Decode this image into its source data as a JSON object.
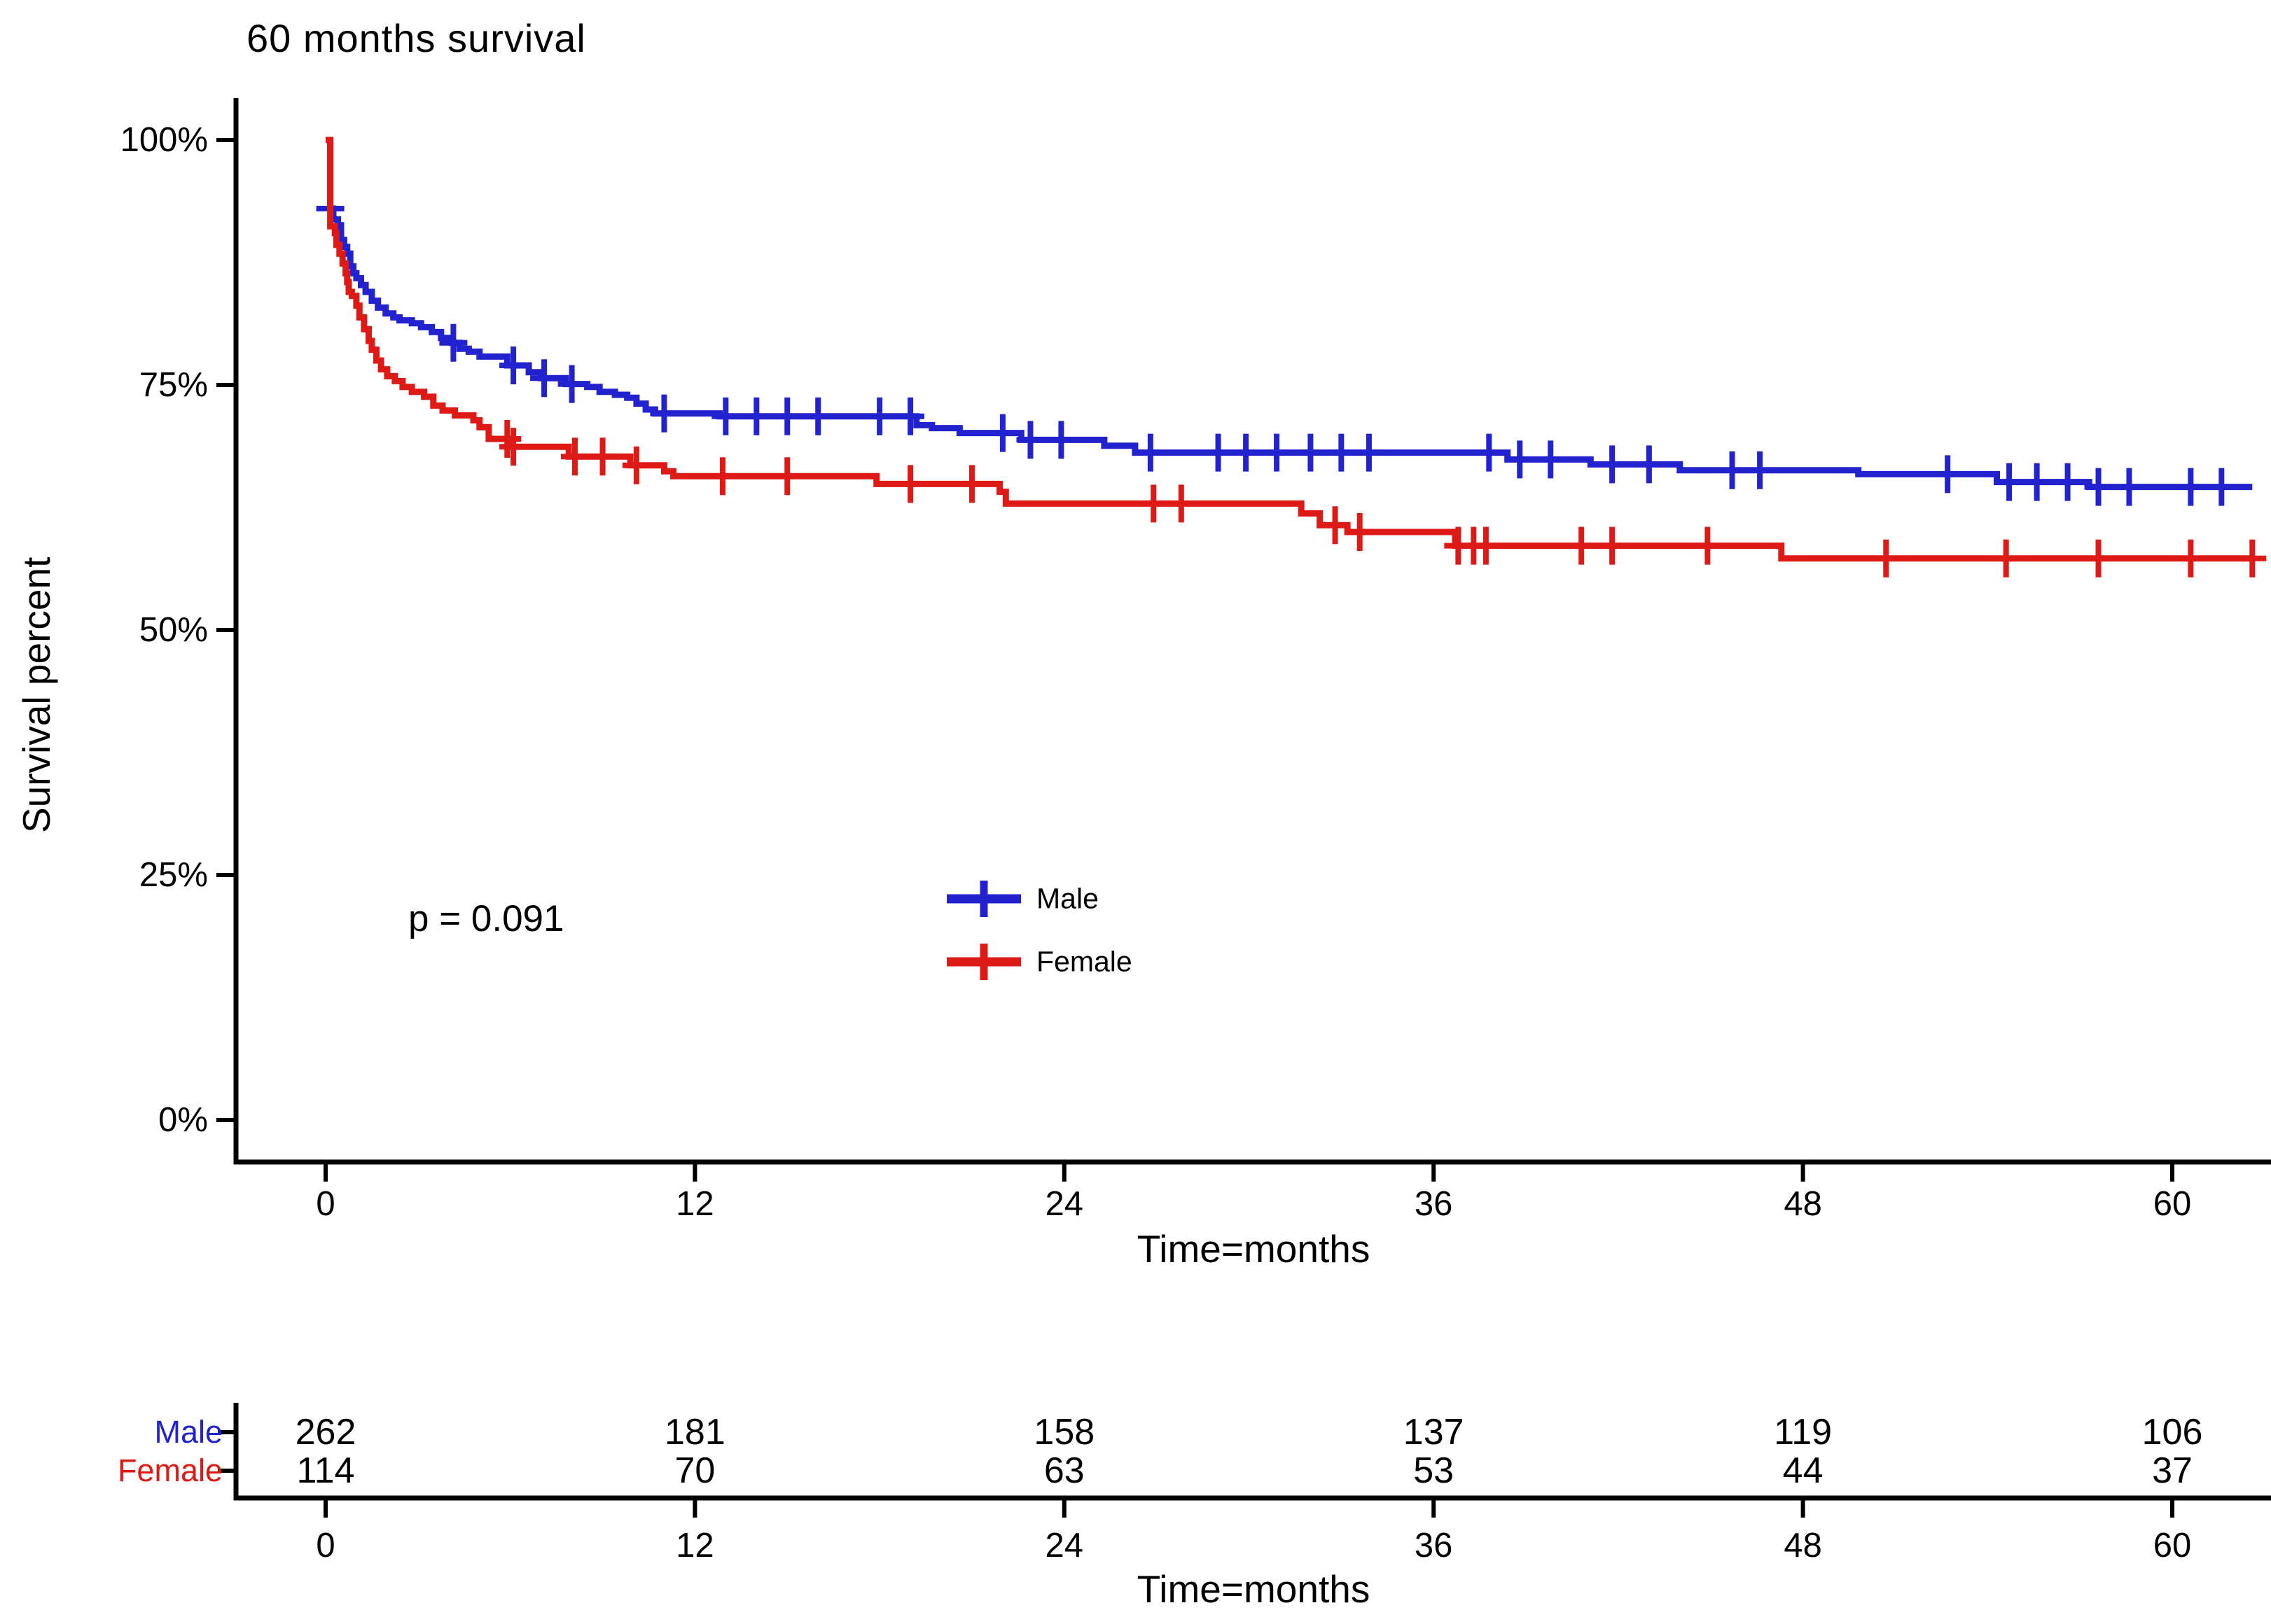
{
  "title": "60 months survival",
  "p_value": "p = 0.091",
  "colors": {
    "male": "#2222ce",
    "female": "#dd1a16",
    "axis": "#000000"
  },
  "axes": {
    "y_label": "Survival percent",
    "x_label": "Time=months",
    "y_ticks": [
      "100%",
      "75%",
      "50%",
      "25%",
      "0%"
    ],
    "y_tick_values": [
      100,
      75,
      50,
      25,
      0
    ],
    "x_tick_values": [
      0,
      12,
      24,
      36,
      48,
      60
    ]
  },
  "legend": [
    {
      "label": "Male",
      "color": "#2222ce"
    },
    {
      "label": "Female",
      "color": "#dd1a16"
    }
  ],
  "risk_table": {
    "x_label": "Time=months",
    "x_tick_values": [
      0,
      12,
      24,
      36,
      48,
      60
    ],
    "rows": [
      {
        "label": "Male",
        "color": "#2222ce",
        "counts": [
          262,
          181,
          158,
          137,
          119,
          106
        ]
      },
      {
        "label": "Female",
        "color": "#dd1a16",
        "counts": [
          114,
          70,
          63,
          53,
          44,
          37
        ]
      }
    ]
  },
  "chart_data": {
    "type": "line",
    "subtype": "kaplan-meier-step",
    "title": "60 months survival",
    "xlabel": "Time=months",
    "ylabel": "Survival percent",
    "xlim": [
      0,
      63.2
    ],
    "ylim": [
      0,
      100
    ],
    "grid": false,
    "legend_position": "center-of-plot",
    "annotation": "p = 0.091",
    "series": [
      {
        "name": "Male",
        "color": "#2222ce",
        "n_at_risk": [
          262,
          181,
          158,
          137,
          119,
          106
        ],
        "steps": [
          [
            0,
            100
          ],
          [
            0.15,
            93
          ],
          [
            0.25,
            91.9
          ],
          [
            0.4,
            91.3
          ],
          [
            0.5,
            89.8
          ],
          [
            0.6,
            89.1
          ],
          [
            0.7,
            88.4
          ],
          [
            0.8,
            87.1
          ],
          [
            0.9,
            86.4
          ],
          [
            1.0,
            85.9
          ],
          [
            1.15,
            85.2
          ],
          [
            1.3,
            84.5
          ],
          [
            1.5,
            83.6
          ],
          [
            1.7,
            82.9
          ],
          [
            1.95,
            82.3
          ],
          [
            2.2,
            81.9
          ],
          [
            2.4,
            81.6
          ],
          [
            2.8,
            81.3
          ],
          [
            3.1,
            80.9
          ],
          [
            3.45,
            80.4
          ],
          [
            3.75,
            79.8
          ],
          [
            4.1,
            79.3
          ],
          [
            4.35,
            78.7
          ],
          [
            4.65,
            78.4
          ],
          [
            5.0,
            77.9
          ],
          [
            5.9,
            77.0
          ],
          [
            6.6,
            76.3
          ],
          [
            7.0,
            75.7
          ],
          [
            7.8,
            75.1
          ],
          [
            8.5,
            74.8
          ],
          [
            8.9,
            74.3
          ],
          [
            9.4,
            74.0
          ],
          [
            9.8,
            73.7
          ],
          [
            10.1,
            73.1
          ],
          [
            10.4,
            72.5
          ],
          [
            10.7,
            72.1
          ],
          [
            12.8,
            71.8
          ],
          [
            19.2,
            70.9
          ],
          [
            19.7,
            70.6
          ],
          [
            20.6,
            70.1
          ],
          [
            22.6,
            69.4
          ],
          [
            25.3,
            68.8
          ],
          [
            26.3,
            68.1
          ],
          [
            38.4,
            67.4
          ],
          [
            41.1,
            66.9
          ],
          [
            44.0,
            66.3
          ],
          [
            49.8,
            65.9
          ],
          [
            54.3,
            65.1
          ],
          [
            57.3,
            64.6
          ],
          [
            62.6,
            64.6
          ]
        ],
        "censor_times": [
          0.15,
          4.15,
          6.1,
          7.1,
          8.0,
          11.0,
          13.0,
          14.0,
          15.0,
          16.0,
          18.0,
          19.0,
          22.0,
          22.9,
          23.9,
          26.8,
          29.0,
          29.9,
          30.9,
          32.0,
          33.0,
          33.9,
          37.8,
          38.8,
          39.8,
          41.8,
          43.0,
          45.7,
          46.6,
          52.7,
          54.7,
          55.6,
          56.6,
          57.6,
          58.6,
          60.6,
          61.6
        ]
      },
      {
        "name": "Female",
        "color": "#dd1a16",
        "n_at_risk": [
          114,
          70,
          63,
          53,
          44,
          37
        ],
        "steps": [
          [
            0,
            100
          ],
          [
            0.15,
            91.2
          ],
          [
            0.3,
            90.5
          ],
          [
            0.35,
            89.3
          ],
          [
            0.45,
            88.4
          ],
          [
            0.55,
            87.4
          ],
          [
            0.65,
            86.4
          ],
          [
            0.7,
            85.5
          ],
          [
            0.75,
            84.5
          ],
          [
            0.85,
            84.1
          ],
          [
            1.0,
            83.1
          ],
          [
            1.1,
            81.9
          ],
          [
            1.25,
            80.7
          ],
          [
            1.4,
            79.5
          ],
          [
            1.5,
            78.6
          ],
          [
            1.65,
            77.5
          ],
          [
            1.8,
            76.6
          ],
          [
            2.0,
            75.9
          ],
          [
            2.25,
            75.4
          ],
          [
            2.5,
            74.8
          ],
          [
            2.8,
            74.3
          ],
          [
            3.2,
            73.8
          ],
          [
            3.5,
            72.9
          ],
          [
            3.8,
            72.4
          ],
          [
            4.2,
            71.9
          ],
          [
            4.8,
            71.4
          ],
          [
            5.0,
            70.7
          ],
          [
            5.3,
            69.5
          ],
          [
            6.0,
            68.7
          ],
          [
            7.9,
            67.7
          ],
          [
            9.9,
            66.8
          ],
          [
            11.0,
            66.2
          ],
          [
            11.3,
            65.7
          ],
          [
            17.9,
            64.9
          ],
          [
            21.9,
            64.1
          ],
          [
            22.1,
            62.9
          ],
          [
            31.7,
            61.9
          ],
          [
            32.3,
            60.7
          ],
          [
            33.2,
            60.0
          ],
          [
            36.7,
            58.6
          ],
          [
            47.3,
            57.3
          ],
          [
            62.6,
            57.3
          ]
        ],
        "censor_times": [
          5.9,
          6.1,
          8.1,
          9.0,
          10.1,
          12.9,
          15.0,
          19.0,
          21.0,
          26.9,
          27.8,
          32.8,
          33.6,
          36.8,
          37.3,
          37.7,
          40.8,
          41.8,
          44.9,
          50.7,
          54.6,
          57.6,
          60.6,
          62.6
        ]
      }
    ]
  }
}
